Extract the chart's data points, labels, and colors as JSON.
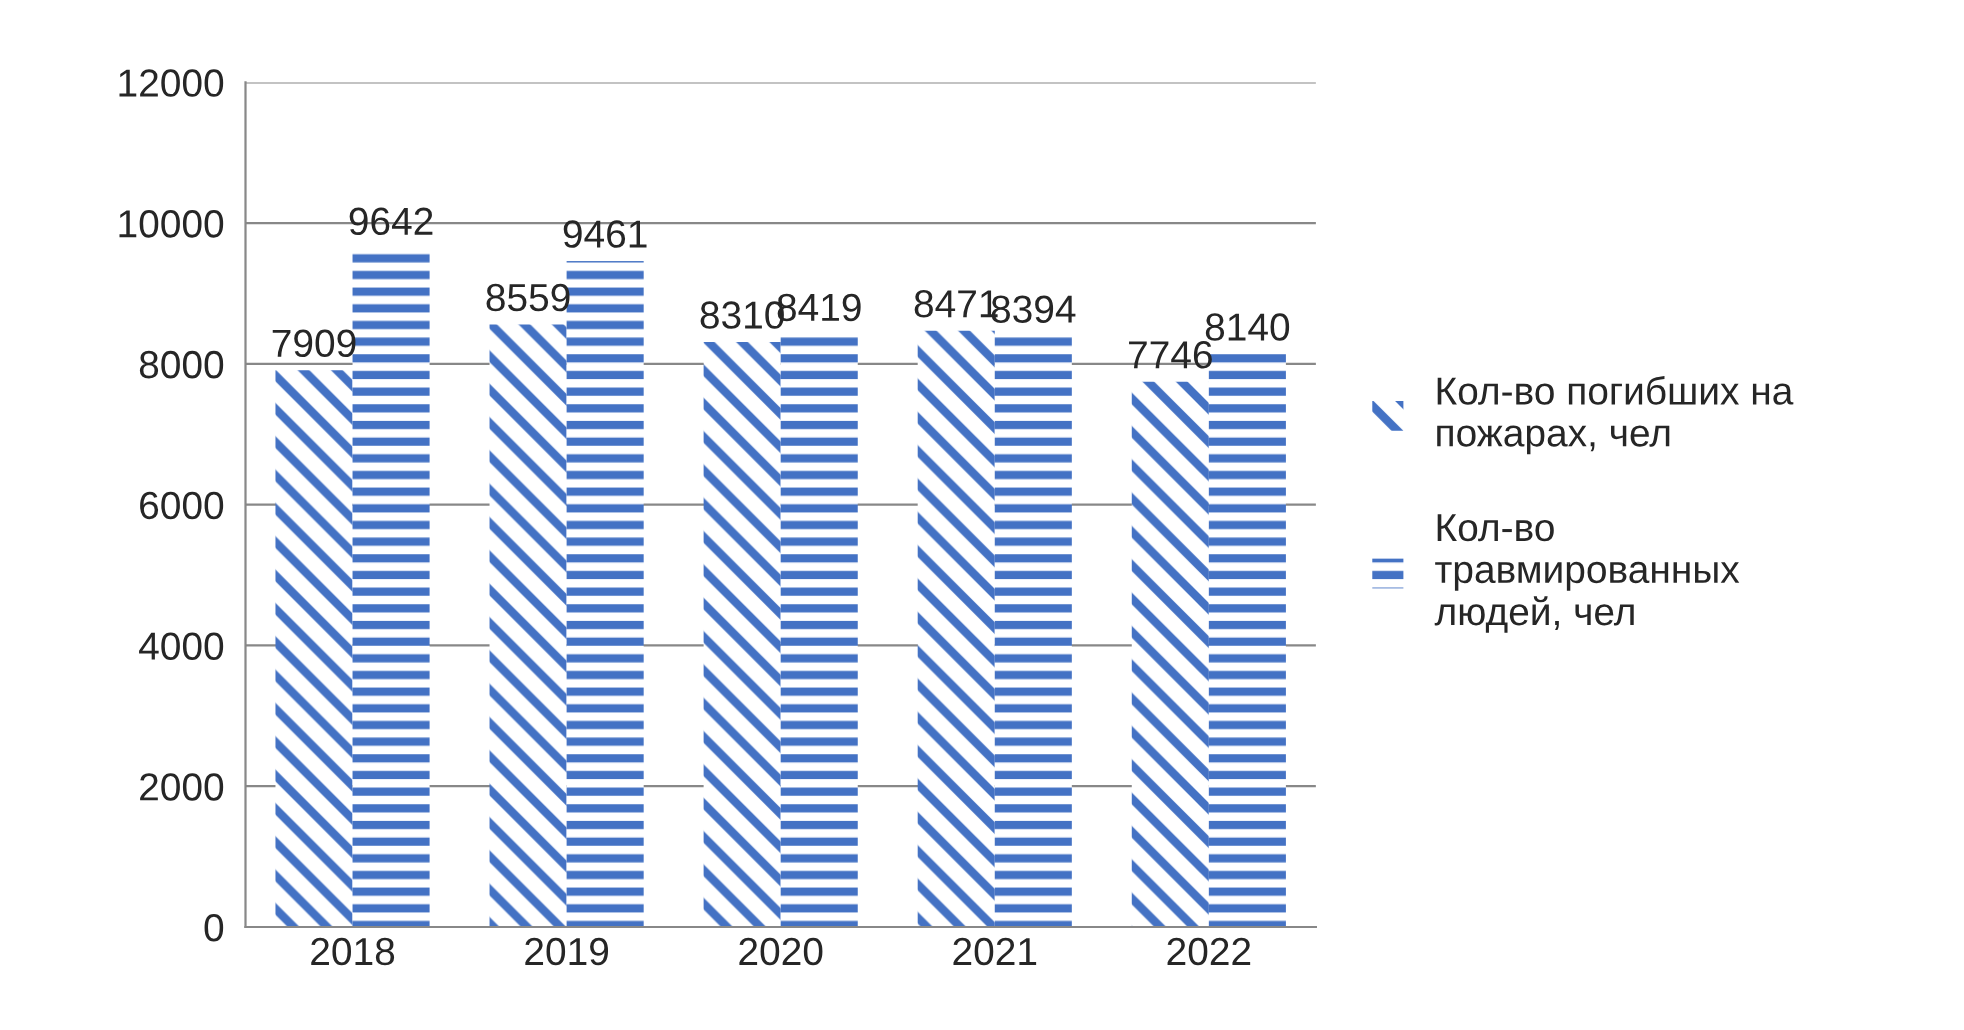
{
  "chart_data": {
    "type": "bar",
    "categories": [
      "2018",
      "2019",
      "2020",
      "2021",
      "2022"
    ],
    "series": [
      {
        "name": "Кол-во погибших на пожарах, чел",
        "color": "#4472c4",
        "values": [
          7909,
          8559,
          8310,
          8471,
          7746
        ]
      },
      {
        "name": "Кол-во травмированных людей, чел",
        "color": "#4472c4",
        "values": [
          9642,
          9461,
          8419,
          8394,
          8140
        ]
      }
    ],
    "ylim": [
      0,
      12000
    ],
    "yticks": [
      0,
      2000,
      4000,
      6000,
      8000,
      10000,
      12000
    ],
    "grid": "y",
    "legend": "right",
    "data_labels": true
  }
}
